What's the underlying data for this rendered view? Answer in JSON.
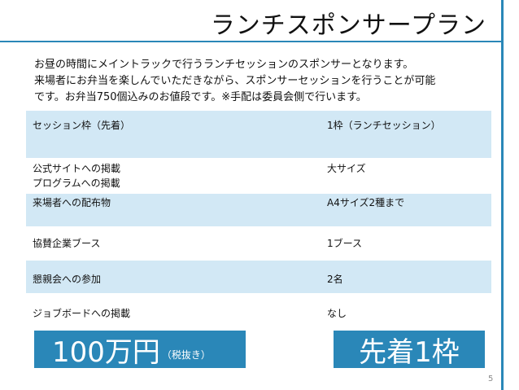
{
  "title": "ランチスポンサープラン",
  "intro": {
    "line1": "お昼の時間にメイントラックで行うランチセッションのスポンサーとなります。",
    "line2": "来場者にお弁当を楽しんでいただきながら、スポンサーセッションを行うことが可能",
    "line3": "です。お弁当750個込みのお値段です。※手配は委員会側で行います。"
  },
  "table": {
    "rows": [
      {
        "label": "セッション枠（先着）",
        "value": "1枠（ランチセッション）"
      },
      {
        "label_line1": "公式サイトへの掲載",
        "label_line2": "プログラムへの掲載",
        "value": "大サイズ"
      },
      {
        "label": "来場者への配布物",
        "value": "A4サイズ2種まで"
      },
      {
        "label": "協賛企業ブース",
        "value": "1ブース"
      },
      {
        "label": "懇親会への参加",
        "value": "2名"
      },
      {
        "label": "ジョブボードへの掲載",
        "value": "なし"
      }
    ]
  },
  "price_badge": {
    "amount": "100万円",
    "note": "（税抜き）"
  },
  "slot_badge": {
    "text": "先着1枠"
  },
  "page_number": "5",
  "colors": {
    "accent": "#2a87b8",
    "row_shade": "#d2e8f5"
  }
}
